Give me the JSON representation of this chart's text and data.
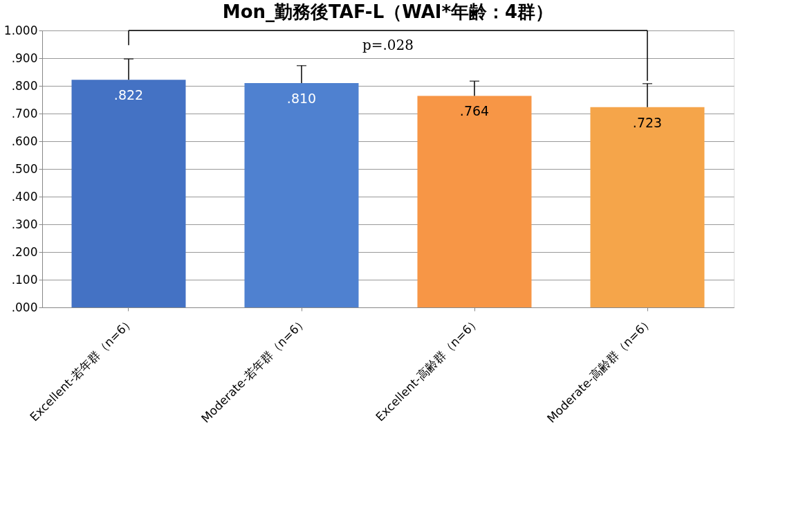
{
  "chart_data": {
    "type": "bar",
    "title": "Mon_勤務後TAF-L（WAI*年齢：4群）",
    "categories": [
      "Excellent-若年群（n=6）",
      "Moderate-若年群（n=6）",
      "Excellent-高齢群（n=6）",
      "Moderate-高齢群（n=6）"
    ],
    "values": [
      0.822,
      0.81,
      0.764,
      0.723
    ],
    "colors": [
      "#4472c4",
      "#4f81d0",
      "#f79646",
      "#f5a54a"
    ],
    "value_labels": [
      ".822",
      ".810",
      ".764",
      ".723"
    ],
    "errors": [
      [
        0.822,
        0.897
      ],
      [
        0.81,
        0.873
      ],
      [
        0.764,
        0.817
      ],
      [
        0.723,
        0.808
      ]
    ],
    "annotations": [
      "p=.028"
    ],
    "ylim": [
      0,
      1.0
    ],
    "yticks": [
      {
        "value": 0,
        "label": ".000"
      },
      {
        "value": 0.1,
        "label": ".100"
      },
      {
        "value": 0.2,
        "label": ".200"
      },
      {
        "value": 0.3,
        "label": ".300"
      },
      {
        "value": 0.4,
        "label": ".400"
      },
      {
        "value": 0.5,
        "label": ".500"
      },
      {
        "value": 0.6,
        "label": ".600"
      },
      {
        "value": 0.7,
        "label": ".700"
      },
      {
        "value": 0.8,
        "label": ".800"
      },
      {
        "value": 0.9,
        "label": ".900"
      },
      {
        "value": 1.0,
        "label": "1.000"
      }
    ],
    "grid": "y"
  }
}
